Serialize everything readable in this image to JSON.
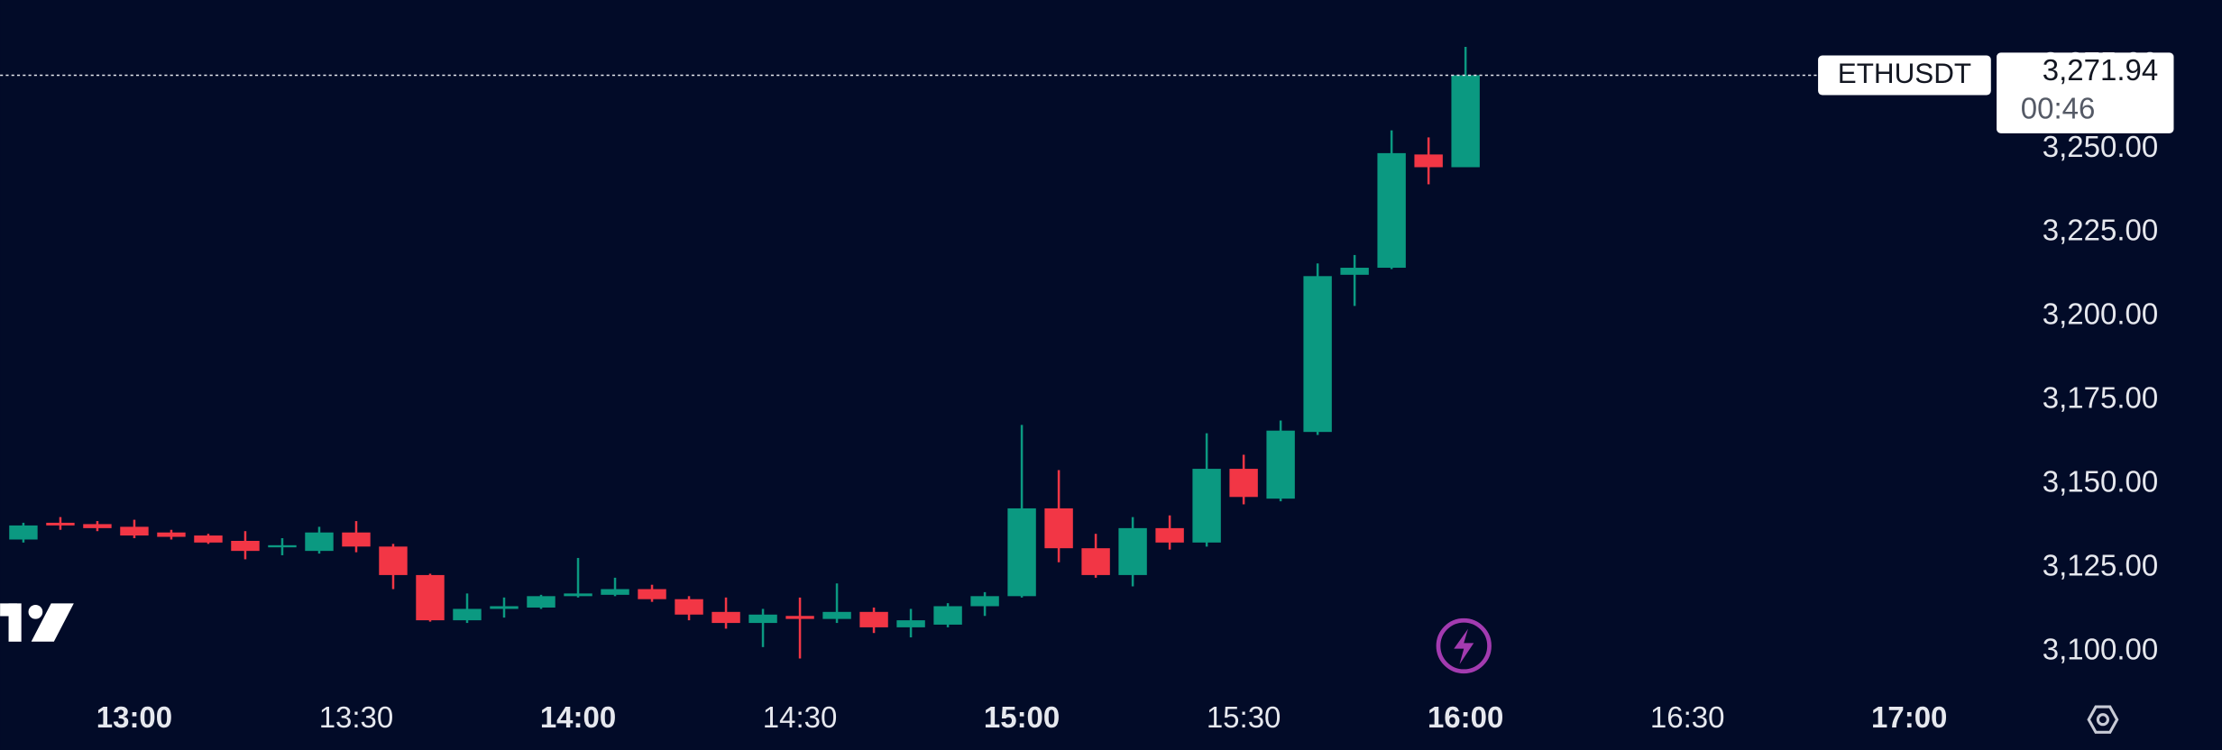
{
  "chart_data": {
    "type": "candlestick",
    "symbol": "ETHUSDT",
    "last_price_label": "3,271.94",
    "last_price": 3271.94,
    "countdown": "00:46",
    "up_color": "#0b9981",
    "down_color": "#f23645",
    "x": [
      765,
      770,
      775,
      780,
      785,
      790,
      795,
      800,
      805,
      810,
      815,
      820,
      825,
      830,
      835,
      840,
      845,
      850,
      855,
      860,
      865,
      870,
      875,
      880,
      885,
      890,
      895,
      900,
      905,
      910,
      915,
      920,
      925,
      930,
      935,
      940,
      945,
      950,
      955,
      960
    ],
    "open": [
      3133.4,
      3138.4,
      3138.0,
      3137.2,
      3135.5,
      3134.6,
      3133.0,
      3131.3,
      3130.0,
      3135.5,
      3131.3,
      3122.8,
      3109.3,
      3112.7,
      3113.1,
      3116.5,
      3116.9,
      3118.6,
      3115.6,
      3111.8,
      3108.5,
      3110.6,
      3109.7,
      3111.8,
      3107.2,
      3108.0,
      3113.5,
      3116.5,
      3142.7,
      3130.8,
      3122.8,
      3136.8,
      3132.5,
      3154.5,
      3145.6,
      3165.5,
      3212.4,
      3214.5,
      3248.3,
      3244.5
    ],
    "high": [
      3138.4,
      3140.1,
      3138.9,
      3139.3,
      3136.3,
      3135.1,
      3135.9,
      3133.8,
      3137.2,
      3138.9,
      3132.1,
      3123.2,
      3117.3,
      3116.1,
      3116.9,
      3127.9,
      3122.0,
      3119.9,
      3116.5,
      3116.1,
      3112.7,
      3116.1,
      3120.3,
      3113.1,
      3112.7,
      3114.4,
      3117.7,
      3167.6,
      3154.1,
      3135.1,
      3140.1,
      3140.6,
      3165.1,
      3158.7,
      3168.9,
      3215.8,
      3218.3,
      3255.5,
      3253.4,
      3280.4
    ],
    "low": [
      3132.5,
      3136.3,
      3135.9,
      3133.8,
      3133.4,
      3132.1,
      3127.5,
      3128.7,
      3129.2,
      3129.6,
      3118.6,
      3108.9,
      3108.5,
      3110.1,
      3112.7,
      3116.1,
      3116.5,
      3114.8,
      3109.3,
      3106.8,
      3101.3,
      3097.9,
      3108.5,
      3105.5,
      3104.2,
      3107.2,
      3110.6,
      3116.1,
      3126.6,
      3122.0,
      3119.4,
      3130.4,
      3131.3,
      3143.9,
      3144.8,
      3164.6,
      3203.1,
      3214.1,
      3239.4,
      3244.5
    ],
    "close": [
      3137.6,
      3137.6,
      3136.8,
      3134.6,
      3134.2,
      3132.5,
      3130.0,
      3131.7,
      3135.5,
      3131.3,
      3122.8,
      3109.3,
      3112.7,
      3113.5,
      3116.5,
      3117.3,
      3118.6,
      3115.6,
      3111.0,
      3108.5,
      3111.0,
      3109.7,
      3111.8,
      3107.2,
      3109.3,
      3113.5,
      3116.5,
      3142.7,
      3130.8,
      3122.8,
      3136.8,
      3132.5,
      3154.5,
      3146.1,
      3165.9,
      3212.0,
      3214.5,
      3248.7,
      3244.5,
      3271.94
    ],
    "xlim": [
      761.85,
      1032
    ],
    "xticks": [
      {
        "value": 780,
        "label": "13:00"
      },
      {
        "value": 810,
        "label": "13:30"
      },
      {
        "value": 840,
        "label": "14:00"
      },
      {
        "value": 870,
        "label": "14:30"
      },
      {
        "value": 900,
        "label": "15:00"
      },
      {
        "value": 930,
        "label": "15:30"
      },
      {
        "value": 960,
        "label": "16:00"
      },
      {
        "value": 990,
        "label": "16:30"
      },
      {
        "value": 1020,
        "label": "17:00"
      }
    ],
    "ylim": [
      3089.4,
      3294.4
    ],
    "yticks": [
      {
        "value": 3100,
        "label": "3,100.00"
      },
      {
        "value": 3125,
        "label": "3,125.00"
      },
      {
        "value": 3150,
        "label": "3,150.00"
      },
      {
        "value": 3175,
        "label": "3,175.00"
      },
      {
        "value": 3200,
        "label": "3,200.00"
      },
      {
        "value": 3225,
        "label": "3,225.00"
      },
      {
        "value": 3250,
        "label": "3,250.00"
      },
      {
        "value": 3275,
        "label": "3,275.00"
      }
    ]
  }
}
